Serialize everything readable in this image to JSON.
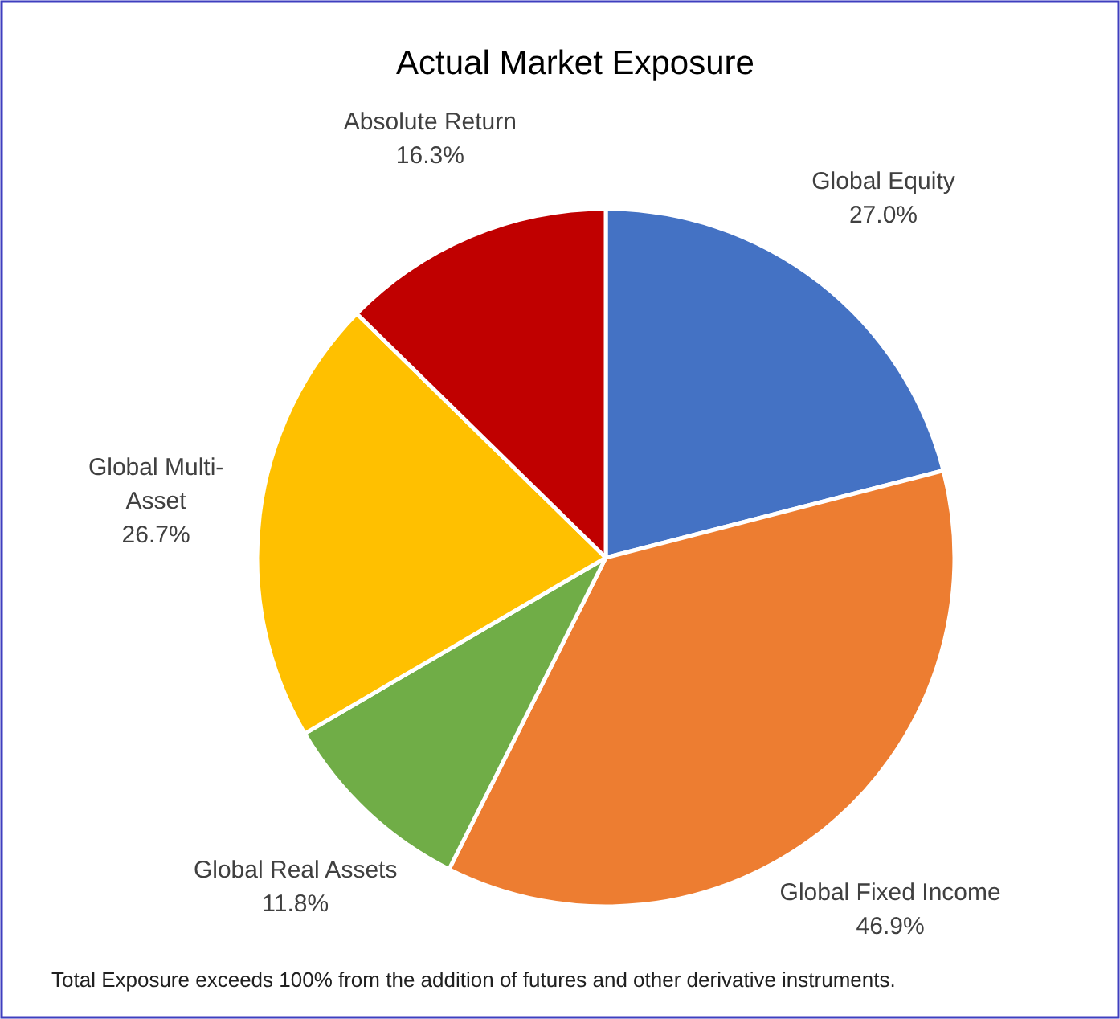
{
  "chart_data": {
    "type": "pie",
    "title": "Actual Market Exposure",
    "categories": [
      "Global Equity",
      "Global Fixed Income",
      "Global Real Assets",
      "Global Multi-Asset",
      "Absolute Return"
    ],
    "values": [
      27.0,
      46.9,
      11.8,
      26.7,
      16.3
    ],
    "value_labels": [
      "27.0%",
      "46.9%",
      "11.8%",
      "26.7%",
      "16.3%"
    ],
    "colors": [
      "#4472c4",
      "#ed7d31",
      "#70ad47",
      "#ffc000",
      "#c00000"
    ],
    "annotations": [
      "Total Exposure exceeds 100% from the addition of futures and other derivative instruments."
    ]
  }
}
